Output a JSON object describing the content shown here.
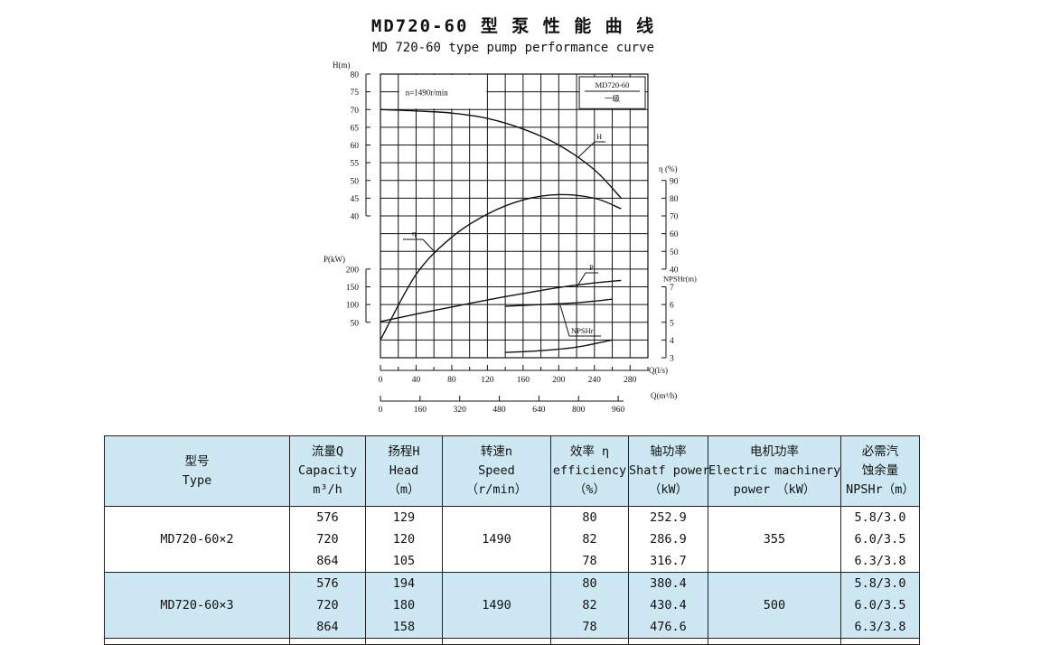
{
  "title_cn": "MD720-60 型 泵 性 能 曲 线",
  "title_en": "MD 720-60 type pump performance curve",
  "chart_data": {
    "type": "line",
    "title": "MD 720-60 type pump performance curve",
    "speed_label": "n=1490r/min",
    "legend_model": "MD720-60",
    "legend_stage": "一级",
    "grid": true,
    "axes": {
      "H": {
        "label": "H(m)",
        "range": [
          40,
          80
        ],
        "ticks": [
          80,
          75,
          70,
          65,
          60,
          55,
          50,
          45,
          40
        ]
      },
      "eta": {
        "label": "η (%)",
        "range": [
          40,
          90
        ],
        "ticks": [
          90,
          80,
          70,
          60,
          50,
          40
        ]
      },
      "P": {
        "label": "P(kW)",
        "range": [
          0,
          200
        ],
        "ticks": [
          200,
          150,
          100,
          50
        ]
      },
      "NPSHr": {
        "label": "NPSHr(m)",
        "range": [
          3,
          7
        ],
        "ticks": [
          7,
          6,
          5,
          4,
          3
        ]
      },
      "Q_ls": {
        "label": "Q(l/s)",
        "range": [
          0,
          280
        ],
        "ticks": [
          0,
          40,
          80,
          120,
          160,
          200,
          240,
          280
        ]
      },
      "Q_m3h": {
        "label": "Q(m³/h)",
        "ticks": [
          0,
          160,
          320,
          480,
          640,
          800,
          960
        ]
      }
    },
    "series": [
      {
        "name": "H",
        "x": [
          0,
          40,
          80,
          120,
          160,
          200,
          240,
          270
        ],
        "values": [
          70,
          69.6,
          69,
          67.5,
          64.5,
          60,
          53,
          45
        ]
      },
      {
        "name": "η",
        "x": [
          0,
          40,
          80,
          120,
          160,
          200,
          240,
          270
        ],
        "values": [
          0,
          37,
          58,
          71,
          79,
          82,
          80,
          74
        ]
      },
      {
        "name": "P",
        "x": [
          0,
          40,
          80,
          120,
          160,
          200,
          240,
          270
        ],
        "values": [
          52,
          73,
          93,
          113,
          131,
          148,
          161,
          168
        ]
      },
      {
        "name": "NPSHr",
        "x": [
          140,
          180,
          220,
          260
        ],
        "values": [
          5.9,
          6.0,
          6.1,
          6.3
        ]
      },
      {
        "name": "NPSHr",
        "x": [
          140,
          180,
          220,
          260
        ],
        "values": [
          3.3,
          3.4,
          3.6,
          4.0
        ]
      }
    ],
    "curve_labels": [
      "H",
      "η",
      "P",
      "NPSHr"
    ]
  },
  "table": {
    "headers": [
      {
        "cn": "型号",
        "en": "Type",
        "unit": ""
      },
      {
        "cn": "流量Q",
        "en": "Capacity",
        "unit": "m³/h"
      },
      {
        "cn": "扬程H",
        "en": "Head",
        "unit": "（m）"
      },
      {
        "cn": "转速n",
        "en": "Speed",
        "unit": "（r/min）"
      },
      {
        "cn": "效率 η",
        "en": "efficiency",
        "unit": "（%）"
      },
      {
        "cn": "轴功率",
        "en": "Shatf power",
        "unit": "（kW）"
      },
      {
        "cn": "电机功率",
        "en": "Electric machinery",
        "unit": "power　（kW）"
      },
      {
        "cn": "必需汽",
        "en": "蚀余量",
        "unit": "NPSHr（m）"
      }
    ],
    "groups": [
      {
        "type": "MD720-60×2",
        "capacity": [
          "576",
          "720",
          "864"
        ],
        "head": [
          "129",
          "120",
          "105"
        ],
        "speed": "1490",
        "efficiency": [
          "80",
          "82",
          "78"
        ],
        "shaft_power": [
          "252.9",
          "286.9",
          "316.7"
        ],
        "motor_power": "355",
        "npshr": [
          "5.8/3.0",
          "6.0/3.5",
          "6.3/3.8"
        ]
      },
      {
        "type": "MD720-60×3",
        "capacity": [
          "576",
          "720",
          "864"
        ],
        "head": [
          "194",
          "180",
          "158"
        ],
        "speed": "1490",
        "efficiency": [
          "80",
          "82",
          "78"
        ],
        "shaft_power": [
          "380.4",
          "430.4",
          "476.6"
        ],
        "motor_power": "500",
        "npshr": [
          "5.8/3.0",
          "6.0/3.5",
          "6.3/3.8"
        ]
      }
    ]
  }
}
